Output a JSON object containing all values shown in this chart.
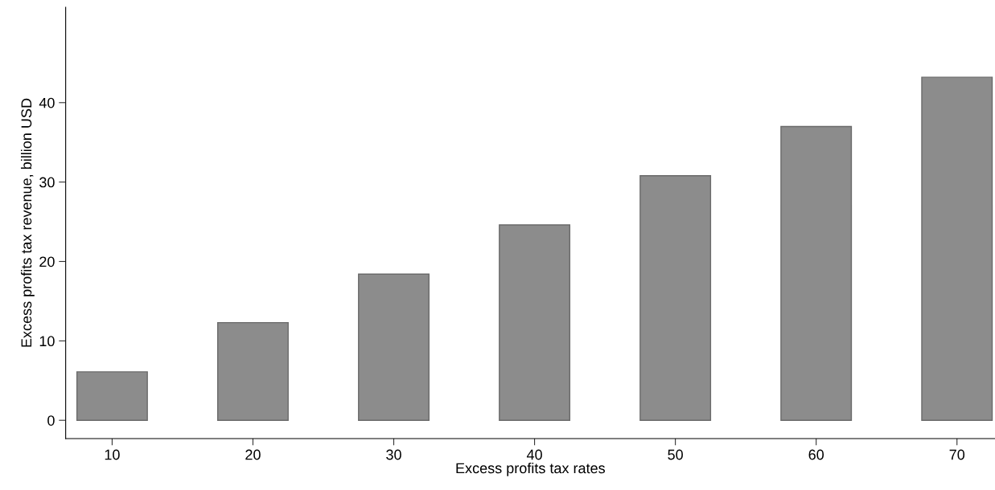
{
  "chart_data": {
    "type": "bar",
    "xlabel": "Excess profits tax rates",
    "ylabel": "Excess profits tax revenue, billion USD",
    "categories": [
      "10",
      "20",
      "30",
      "40",
      "50",
      "60",
      "70"
    ],
    "values": [
      6.1,
      12.3,
      18.4,
      24.6,
      30.8,
      37.0,
      43.2
    ],
    "color": "#8c8c8c",
    "ylim": [
      -2.3,
      52
    ],
    "yticks": [
      0,
      10,
      20,
      30,
      40
    ],
    "grid": false,
    "legend": false
  }
}
